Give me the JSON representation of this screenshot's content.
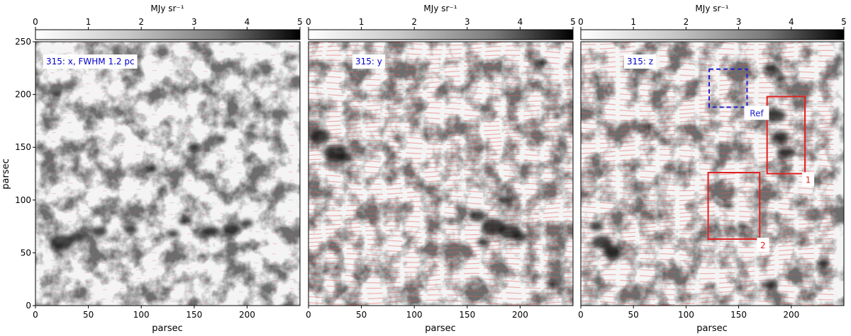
{
  "chart_data": [
    {
      "type": "heatmap",
      "panel": "x",
      "annotation": "315: x, FWHM 1.2 pc",
      "colorbar": {
        "label": "MJy sr⁻¹",
        "range": [
          0,
          5
        ],
        "ticks": [
          "0",
          "1",
          "2",
          "3",
          "4",
          "5"
        ],
        "colormap": "white-to-black"
      },
      "xlabel": "parsec",
      "ylabel": "parsec",
      "xlim": [
        0,
        250
      ],
      "ylim": [
        0,
        250
      ],
      "xticks": [
        "0",
        "50",
        "100",
        "150",
        "200"
      ],
      "yticks": [
        "0",
        "50",
        "100",
        "150",
        "200",
        "250"
      ],
      "overlay": "red polarization drapery pattern",
      "regions": []
    },
    {
      "type": "heatmap",
      "panel": "y",
      "annotation": "315: y",
      "colorbar": {
        "label": "MJy sr⁻¹",
        "range": [
          0,
          5
        ],
        "ticks": [
          "0",
          "1",
          "2",
          "3",
          "4",
          "5"
        ],
        "colormap": "white-to-black"
      },
      "xlabel": "parsec",
      "ylabel": "",
      "xlim": [
        0,
        250
      ],
      "ylim": [
        0,
        250
      ],
      "xticks": [
        "0",
        "50",
        "100",
        "150",
        "200"
      ],
      "yticks": [],
      "overlay": "red polarization drapery pattern",
      "regions": []
    },
    {
      "type": "heatmap",
      "panel": "z",
      "annotation": "315: z",
      "colorbar": {
        "label": "MJy sr⁻¹",
        "range": [
          0,
          5
        ],
        "ticks": [
          "0",
          "1",
          "2",
          "3",
          "4",
          "5"
        ],
        "colormap": "white-to-black"
      },
      "xlabel": "parsec",
      "ylabel": "",
      "xlim": [
        0,
        250
      ],
      "ylim": [
        0,
        250
      ],
      "xticks": [
        "0",
        "50",
        "100",
        "150",
        "200"
      ],
      "yticks": [],
      "overlay": "red polarization drapery pattern",
      "regions": [
        {
          "label": "Ref",
          "x": [
            122,
            158
          ],
          "y": [
            188,
            224
          ],
          "color": "#2020d0",
          "style": "dashed"
        },
        {
          "label": "1",
          "x": [
            177,
            213
          ],
          "y": [
            125,
            198
          ],
          "color": "#e02020",
          "style": "solid"
        },
        {
          "label": "2",
          "x": [
            121,
            170
          ],
          "y": [
            63,
            126
          ],
          "color": "#e02020",
          "style": "solid"
        }
      ]
    }
  ],
  "colors": {
    "annotation_text": "#0000cc",
    "region_red": "#e02020",
    "region_blue": "#2020d0",
    "overlay_red": "#e85a5a"
  }
}
